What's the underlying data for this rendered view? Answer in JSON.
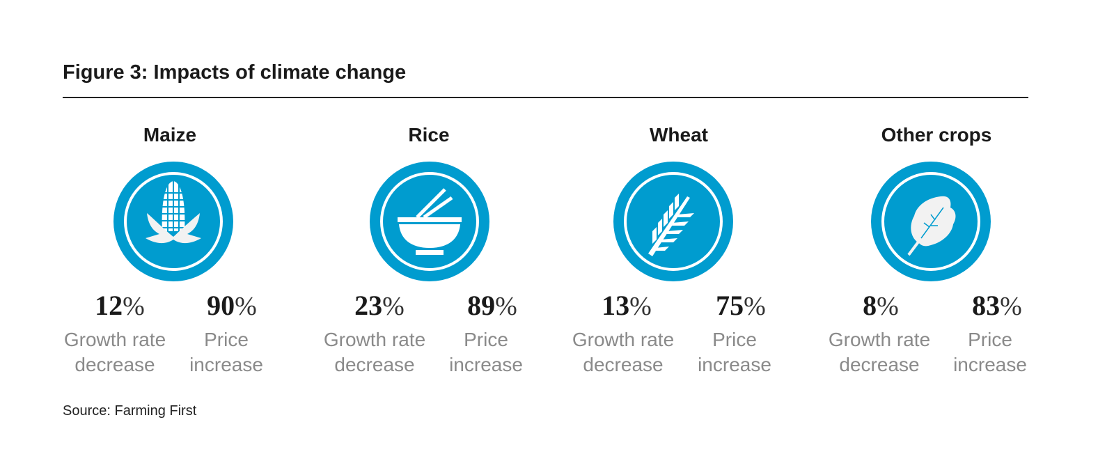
{
  "title": "Figure 3: Impacts of climate change",
  "accent_color": "#009ccf",
  "crops": [
    {
      "name": "Maize",
      "icon": "corn-icon",
      "growth_value": "12",
      "price_value": "90"
    },
    {
      "name": "Rice",
      "icon": "rice-bowl-icon",
      "growth_value": "23",
      "price_value": "89"
    },
    {
      "name": "Wheat",
      "icon": "wheat-icon",
      "growth_value": "13",
      "price_value": "75"
    },
    {
      "name": "Other crops",
      "icon": "leaf-icon",
      "growth_value": "8",
      "price_value": "83"
    }
  ],
  "percent_sign": "%",
  "growth_label_1": "Growth rate",
  "growth_label_2": "decrease",
  "price_label_1": "Price",
  "price_label_2": "increase",
  "source": "Source: Farming First"
}
